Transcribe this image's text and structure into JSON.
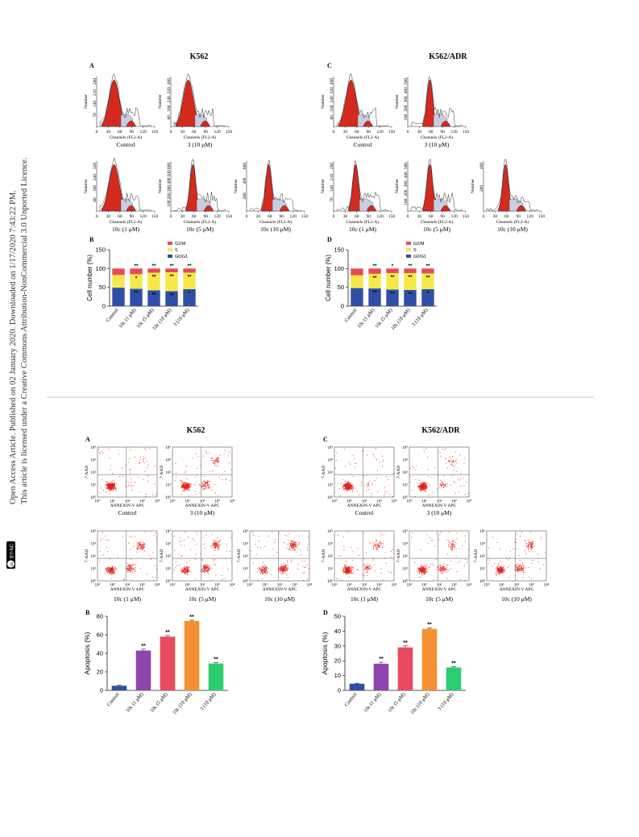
{
  "sidebar": {
    "license_line_1": "Open Access Article. Published on 02 January 2020. Downloaded on 1/17/2020 7:43:22 PM.",
    "license_line_2": "This article is licensed under a Creative Commons Attribution-NonCommercial 3.0 Unported Licence.",
    "cc_badge": "cc",
    "by_nc_badge": "BY-NC"
  },
  "figure1": {
    "title_left": "K562",
    "title_right": "K562/ADR",
    "panel_a": "A",
    "panel_c": "C",
    "panel_b": "B",
    "panel_d": "D",
    "hist_xlabel": "Channels (FL2-A)",
    "hist_ylabel": "Number",
    "hist_xticks": [
      "0",
      "30",
      "60",
      "90",
      "120",
      "150"
    ],
    "captions_left": [
      "Control",
      "3 (10 μM)",
      "10c (1 μM)",
      "10c (5 μM)",
      "10c (10 μM)"
    ],
    "captions_right": [
      "Control",
      "3 (10 μM)",
      "10c (1 μM)",
      "10c (5 μM)",
      "10c (10 μM)"
    ],
    "hist_yticks_left": [
      [
        "70",
        "140",
        "210",
        "280"
      ],
      [
        "80",
        "160",
        "240",
        "320",
        "400"
      ],
      [
        "80",
        "160",
        "240",
        "320"
      ],
      [
        "100",
        "200",
        "300",
        "400",
        "500",
        "600"
      ],
      [
        "200",
        "400",
        "600"
      ]
    ],
    "hist_yticks_right": [
      [
        "80",
        "160",
        "240",
        "320",
        "400"
      ],
      [
        "100",
        "200",
        "300",
        "400",
        "500"
      ],
      [
        "70",
        "140",
        "210",
        "280"
      ],
      [
        "100",
        "200",
        "300",
        "400",
        "500"
      ],
      [
        "200",
        "400"
      ]
    ]
  },
  "figure2": {
    "title_left": "K562",
    "title_right": "K562/ADR",
    "panel_a": "A",
    "panel_c": "C",
    "panel_b": "B",
    "panel_d": "D",
    "scatter_xlabel": "ANNEXIN-V APC",
    "scatter_ylabel": "7-AAD",
    "decade_ticks": [
      "10⁰",
      "10¹",
      "10²",
      "10³",
      "10⁴"
    ],
    "captions_left": [
      "Control",
      "3 (10 μM)",
      "10c (1 μM)",
      "10c (5 μM)",
      "10c (10 μM)"
    ],
    "captions_right": [
      "Control",
      "3 (10 μM)",
      "10c (1 μM)",
      "10c (5 μM)",
      "10c (10 μM)"
    ]
  },
  "chart_data": [
    {
      "type": "bar",
      "stacked": true,
      "panel": "B",
      "categories": [
        "Control",
        "10c (1 μM)",
        "10c (5 μM)",
        "10c (10 μM)",
        "3 (10 μM)"
      ],
      "series": [
        {
          "name": "G0/G1",
          "values": [
            49,
            46,
            42,
            40,
            45
          ]
        },
        {
          "name": "S",
          "values": [
            34,
            39,
            47,
            50,
            44
          ]
        },
        {
          "name": "G2/M",
          "values": [
            17,
            15,
            11,
            10,
            11
          ]
        }
      ],
      "ylabel": "Cell number (%)",
      "ylim": [
        0,
        150
      ],
      "yticks": [
        "0",
        "50",
        "100",
        "150"
      ],
      "marks": {
        "G2/M": [
          "",
          "**",
          "**",
          "**",
          "**"
        ],
        "S": [
          "",
          "*",
          "**",
          "**",
          "**"
        ],
        "G0/G1": [
          "",
          "**",
          "**",
          "**",
          "*"
        ]
      },
      "colors": {
        "G0/G1": "#2e4ea8",
        "S": "#f5e94a",
        "G2/M": "#e84a52"
      },
      "legend": "top-right"
    },
    {
      "type": "bar",
      "stacked": true,
      "panel": "D",
      "categories": [
        "Control",
        "10c (1 μM)",
        "10c (5 μM)",
        "10c (10 μM)",
        "3 (10 μM)"
      ],
      "series": [
        {
          "name": "G0/G1",
          "values": [
            48,
            47,
            44,
            43,
            45
          ]
        },
        {
          "name": "S",
          "values": [
            34,
            39,
            44,
            45,
            42
          ]
        },
        {
          "name": "G2/M",
          "values": [
            18,
            14,
            12,
            12,
            13
          ]
        }
      ],
      "ylabel": "Cell number (%)",
      "ylim": [
        0,
        150
      ],
      "yticks": [
        "0",
        "50",
        "100",
        "150"
      ],
      "marks": {
        "G2/M": [
          "",
          "**",
          "*",
          "**",
          "**"
        ],
        "S": [
          "",
          "**",
          "**",
          "**",
          "**"
        ],
        "G0/G1": [
          "",
          "**",
          "**",
          "**",
          "*"
        ]
      },
      "colors": {
        "G0/G1": "#2e4ea8",
        "S": "#f5e94a",
        "G2/M": "#e84a52"
      },
      "legend": "top-right"
    },
    {
      "type": "bar",
      "panel": "B",
      "categories": [
        "Control",
        "10c (1 μM)",
        "10c (5 μM)",
        "10c (10 μM)",
        "3 (10 μM)"
      ],
      "values": [
        5,
        43,
        58,
        75,
        29
      ],
      "errors": [
        0.5,
        1.5,
        1.2,
        0.8,
        1
      ],
      "marks": [
        "",
        "**",
        "**",
        "**",
        "**"
      ],
      "colors": [
        "#2e4ea8",
        "#8e44ad",
        "#e84a5f",
        "#f39233",
        "#2ecc71"
      ],
      "ylabel": "Apoptosis (%)",
      "ylim": [
        0,
        80
      ],
      "yticks": [
        "0",
        "20",
        "40",
        "60",
        "80"
      ]
    },
    {
      "type": "bar",
      "panel": "D",
      "categories": [
        "Control",
        "10c (1 μM)",
        "10c (5 μM)",
        "10c (10 μM)",
        "3 (10 μM)"
      ],
      "values": [
        4.5,
        18,
        29,
        41.5,
        15.5
      ],
      "errors": [
        0.3,
        1,
        1,
        0.6,
        0.5
      ],
      "marks": [
        "",
        "**",
        "**",
        "**",
        "**"
      ],
      "colors": [
        "#2e4ea8",
        "#8e44ad",
        "#e84a5f",
        "#f39233",
        "#2ecc71"
      ],
      "ylabel": "Apoptosis (%)",
      "ylim": [
        0,
        50
      ],
      "yticks": [
        "0",
        "10",
        "20",
        "30",
        "40",
        "50"
      ]
    }
  ]
}
